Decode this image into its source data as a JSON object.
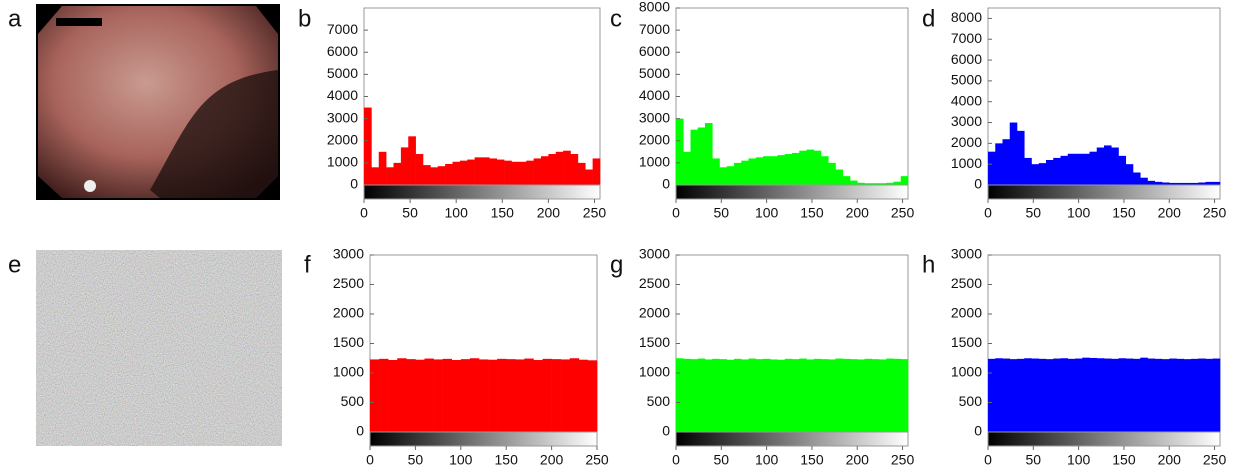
{
  "image_panels": [
    {
      "label": "a"
    },
    {
      "label": "e"
    }
  ],
  "chart_data": [
    {
      "type": "histogram",
      "label": "b",
      "color": "#ff0000",
      "bins": [
        0,
        8,
        16,
        24,
        32,
        40,
        48,
        56,
        64,
        72,
        80,
        88,
        96,
        104,
        112,
        120,
        128,
        136,
        144,
        152,
        160,
        168,
        176,
        184,
        192,
        200,
        208,
        216,
        224,
        232,
        240,
        248,
        256
      ],
      "values": [
        3500,
        800,
        1500,
        800,
        1000,
        1700,
        2200,
        1400,
        900,
        800,
        850,
        950,
        1050,
        1100,
        1150,
        1250,
        1250,
        1200,
        1150,
        1100,
        1050,
        1050,
        1100,
        1200,
        1300,
        1400,
        1500,
        1550,
        1400,
        1000,
        700,
        1200
      ],
      "xlim": [
        0,
        256
      ],
      "xticks": [
        0,
        50,
        100,
        150,
        200,
        250
      ],
      "ylim": [
        0,
        8000
      ],
      "yticks": [
        0,
        1000,
        2000,
        3000,
        4000,
        5000,
        6000,
        7000
      ]
    },
    {
      "type": "histogram",
      "label": "c",
      "color": "#00ff00",
      "bins": [
        0,
        8,
        16,
        24,
        32,
        40,
        48,
        56,
        64,
        72,
        80,
        88,
        96,
        104,
        112,
        120,
        128,
        136,
        144,
        152,
        160,
        168,
        176,
        184,
        192,
        200,
        208,
        216,
        224,
        232,
        240,
        248,
        256
      ],
      "values": [
        3000,
        1500,
        2500,
        2600,
        2800,
        1200,
        800,
        850,
        1000,
        1100,
        1200,
        1250,
        1300,
        1300,
        1350,
        1400,
        1450,
        1550,
        1600,
        1550,
        1300,
        1000,
        700,
        400,
        200,
        100,
        80,
        80,
        80,
        100,
        150,
        400
      ],
      "xlim": [
        0,
        256
      ],
      "xticks": [
        0,
        50,
        100,
        150,
        200,
        250
      ],
      "ylim": [
        0,
        8000
      ],
      "yticks": [
        0,
        1000,
        2000,
        3000,
        4000,
        5000,
        6000,
        7000,
        8000
      ]
    },
    {
      "type": "histogram",
      "label": "d",
      "color": "#0000ff",
      "bins": [
        0,
        8,
        16,
        24,
        32,
        40,
        48,
        56,
        64,
        72,
        80,
        88,
        96,
        104,
        112,
        120,
        128,
        136,
        144,
        152,
        160,
        168,
        176,
        184,
        192,
        200,
        208,
        216,
        224,
        232,
        240,
        248,
        256
      ],
      "values": [
        1600,
        2000,
        2200,
        3000,
        2600,
        1300,
        1000,
        1050,
        1200,
        1300,
        1400,
        1500,
        1500,
        1500,
        1600,
        1800,
        1900,
        1800,
        1400,
        1000,
        600,
        350,
        200,
        150,
        120,
        100,
        100,
        100,
        100,
        120,
        150,
        150
      ],
      "xlim": [
        0,
        256
      ],
      "xticks": [
        0,
        50,
        100,
        150,
        200,
        250
      ],
      "ylim": [
        0,
        8500
      ],
      "yticks": [
        0,
        1000,
        2000,
        3000,
        4000,
        5000,
        6000,
        7000,
        8000
      ]
    },
    {
      "type": "histogram",
      "label": "f",
      "color": "#ff0000",
      "bins": [
        0,
        10,
        20,
        30,
        40,
        50,
        60,
        70,
        80,
        90,
        100,
        110,
        120,
        130,
        140,
        150,
        160,
        170,
        180,
        190,
        200,
        210,
        220,
        230,
        240,
        250
      ],
      "values": [
        1230,
        1240,
        1220,
        1250,
        1235,
        1225,
        1245,
        1230,
        1240,
        1220,
        1235,
        1250,
        1230,
        1225,
        1240,
        1235,
        1230,
        1245,
        1220,
        1240,
        1235,
        1230,
        1250,
        1225,
        1215
      ],
      "xlim": [
        0,
        250
      ],
      "xticks": [
        0,
        50,
        100,
        150,
        200,
        250
      ],
      "ylim": [
        0,
        3000
      ],
      "yticks": [
        0,
        500,
        1000,
        1500,
        2000,
        2500,
        3000
      ]
    },
    {
      "type": "histogram",
      "label": "g",
      "color": "#00ff00",
      "bins": [
        0,
        8,
        16,
        24,
        32,
        40,
        48,
        56,
        64,
        72,
        80,
        88,
        96,
        104,
        112,
        120,
        128,
        136,
        144,
        152,
        160,
        168,
        176,
        184,
        192,
        200,
        208,
        216,
        224,
        232,
        240,
        248,
        256
      ],
      "values": [
        1250,
        1240,
        1235,
        1245,
        1230,
        1240,
        1235,
        1225,
        1240,
        1230,
        1245,
        1235,
        1240,
        1230,
        1225,
        1240,
        1235,
        1245,
        1230,
        1240,
        1235,
        1230,
        1245,
        1240,
        1235,
        1230,
        1240,
        1235,
        1230,
        1245,
        1240,
        1235
      ],
      "xlim": [
        0,
        256
      ],
      "xticks": [
        0,
        50,
        100,
        150,
        200,
        250
      ],
      "ylim": [
        0,
        3000
      ],
      "yticks": [
        0,
        500,
        1000,
        1500,
        2000,
        2500,
        3000
      ]
    },
    {
      "type": "histogram",
      "label": "h",
      "color": "#0000ff",
      "bins": [
        0,
        8,
        16,
        24,
        32,
        40,
        48,
        56,
        64,
        72,
        80,
        88,
        96,
        104,
        112,
        120,
        128,
        136,
        144,
        152,
        160,
        168,
        176,
        184,
        192,
        200,
        208,
        216,
        224,
        232,
        240,
        248,
        256
      ],
      "values": [
        1240,
        1250,
        1245,
        1235,
        1240,
        1250,
        1245,
        1240,
        1235,
        1245,
        1250,
        1240,
        1245,
        1260,
        1255,
        1250,
        1245,
        1240,
        1250,
        1245,
        1240,
        1260,
        1245,
        1240,
        1235,
        1245,
        1240,
        1235,
        1240,
        1245,
        1240,
        1245
      ],
      "xlim": [
        0,
        256
      ],
      "xticks": [
        0,
        50,
        100,
        150,
        200,
        250
      ],
      "ylim": [
        0,
        3000
      ],
      "yticks": [
        0,
        500,
        1000,
        1500,
        2000,
        2500,
        3000
      ]
    }
  ]
}
